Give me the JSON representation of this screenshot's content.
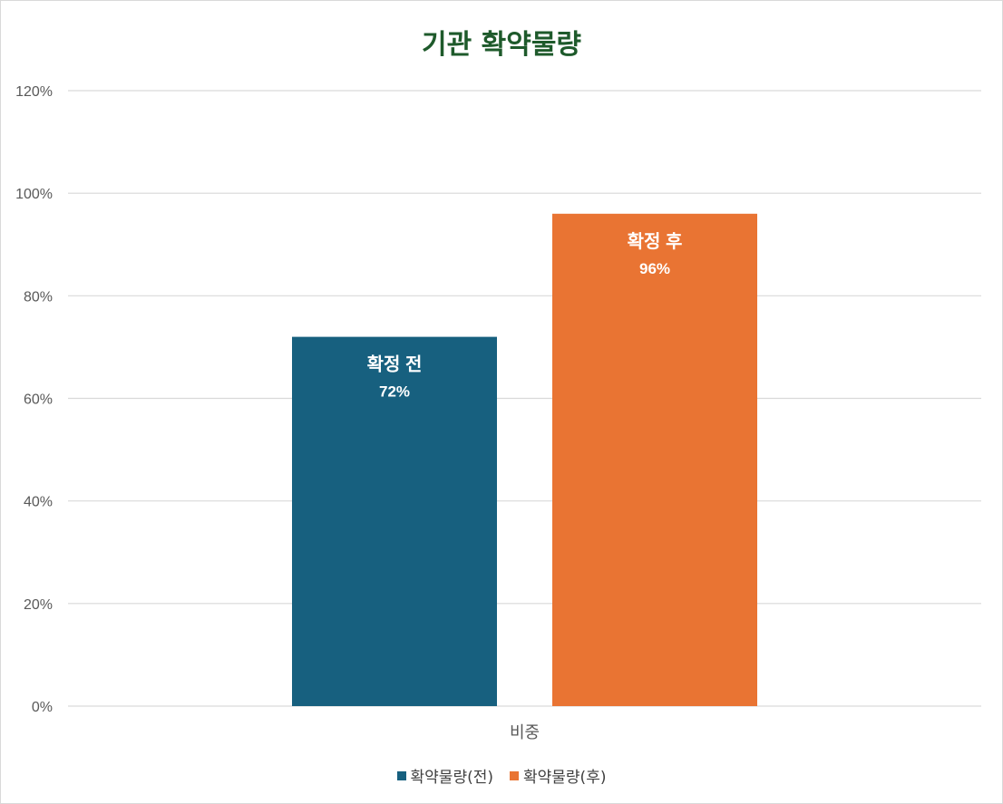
{
  "chart_data": {
    "type": "bar",
    "title": "기관 확약물량",
    "categories": [
      "비중"
    ],
    "series": [
      {
        "name": "확약물량(전)",
        "values": [
          0.72
        ],
        "data_label_name": "확정 전",
        "data_label_value": "72%",
        "color": "#17607f"
      },
      {
        "name": "확약물량(후)",
        "values": [
          0.96
        ],
        "data_label_name": "확정 후",
        "data_label_value": "96%",
        "color": "#e97433"
      }
    ],
    "ylim": [
      0,
      1.2
    ],
    "y_ticks": [
      0,
      0.2,
      0.4,
      0.6,
      0.8,
      1.0,
      1.2
    ],
    "y_tick_labels": [
      "0%",
      "20%",
      "40%",
      "60%",
      "80%",
      "100%",
      "120%"
    ],
    "xlabel": "",
    "ylabel": "",
    "grid": true,
    "legend_position": "bottom",
    "colors": {
      "title": "#1e5a2b",
      "gridline": "#d9d9d9",
      "axis_text": "#595959"
    }
  }
}
